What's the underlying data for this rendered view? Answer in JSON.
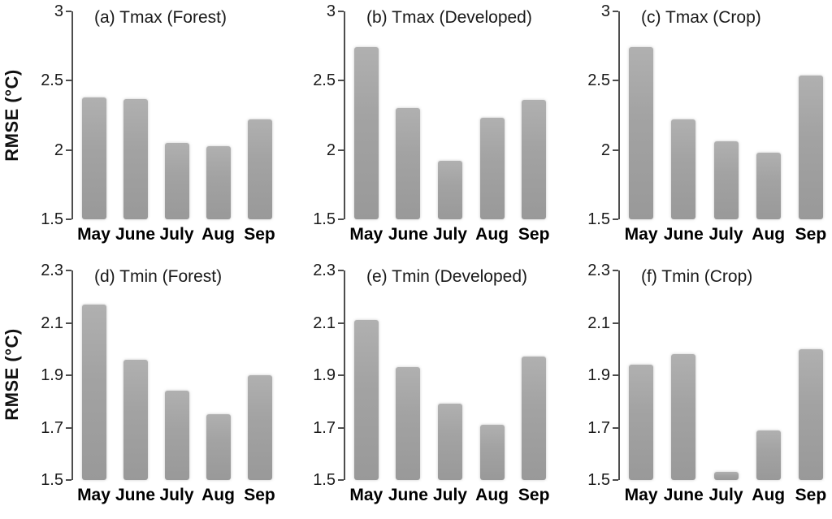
{
  "figure": {
    "ylabel": "RMSE (°C)"
  },
  "chart_data": [
    {
      "id": "a",
      "type": "bar",
      "title": "(a) Tmax (Forest)",
      "categories": [
        "May",
        "June",
        "July",
        "Aug",
        "Sep"
      ],
      "values": [
        2.38,
        2.37,
        2.05,
        2.03,
        2.22
      ],
      "ylabel": "RMSE (°C)",
      "show_ylabel": true,
      "ylim": [
        1.5,
        3.0
      ],
      "yticks": [
        3,
        2.5,
        2,
        1.5
      ],
      "ytick_labels": [
        "3",
        "2.5",
        "2",
        "1.5"
      ],
      "grid": false,
      "legend": "none"
    },
    {
      "id": "b",
      "type": "bar",
      "title": "(b) Tmax (Developed)",
      "categories": [
        "May",
        "June",
        "July",
        "Aug",
        "Sep"
      ],
      "values": [
        2.74,
        2.3,
        1.92,
        2.23,
        2.36
      ],
      "ylabel": "RMSE (°C)",
      "show_ylabel": false,
      "ylim": [
        1.5,
        3.0
      ],
      "yticks": [
        3,
        2.5,
        2,
        1.5
      ],
      "ytick_labels": [
        "3",
        "2.5",
        "2",
        "1.5"
      ],
      "grid": false,
      "legend": "none"
    },
    {
      "id": "c",
      "type": "bar",
      "title": "(c) Tmax (Crop)",
      "categories": [
        "May",
        "June",
        "July",
        "Aug",
        "Sep"
      ],
      "values": [
        2.74,
        2.22,
        2.06,
        1.98,
        2.54
      ],
      "ylabel": "RMSE (°C)",
      "show_ylabel": false,
      "ylim": [
        1.5,
        3.0
      ],
      "yticks": [
        3,
        2.5,
        2,
        1.5
      ],
      "ytick_labels": [
        "3",
        "2.5",
        "2",
        "1.5"
      ],
      "grid": false,
      "legend": "none"
    },
    {
      "id": "d",
      "type": "bar",
      "title": "(d) Tmin (Forest)",
      "categories": [
        "May",
        "June",
        "July",
        "Aug",
        "Sep"
      ],
      "values": [
        2.17,
        1.96,
        1.84,
        1.75,
        1.9
      ],
      "ylabel": "RMSE (°C)",
      "show_ylabel": true,
      "ylim": [
        1.5,
        2.3
      ],
      "yticks": [
        2.3,
        2.1,
        1.9,
        1.7,
        1.5
      ],
      "ytick_labels": [
        "2.3",
        "2.1",
        "1.9",
        "1.7",
        "1.5"
      ],
      "grid": false,
      "legend": "none"
    },
    {
      "id": "e",
      "type": "bar",
      "title": "(e) Tmin (Developed)",
      "categories": [
        "May",
        "June",
        "July",
        "Aug",
        "Sep"
      ],
      "values": [
        2.11,
        1.93,
        1.79,
        1.71,
        1.97
      ],
      "ylabel": "RMSE (°C)",
      "show_ylabel": false,
      "ylim": [
        1.5,
        2.3
      ],
      "yticks": [
        2.3,
        2.1,
        1.9,
        1.7,
        1.5
      ],
      "ytick_labels": [
        "2.3",
        "2.1",
        "1.9",
        "1.7",
        "1.5"
      ],
      "grid": false,
      "legend": "none"
    },
    {
      "id": "f",
      "type": "bar",
      "title": "(f) Tmin (Crop)",
      "categories": [
        "May",
        "June",
        "July",
        "Aug",
        "Sep"
      ],
      "values": [
        1.94,
        1.98,
        1.53,
        1.69,
        2.0
      ],
      "ylabel": "RMSE (°C)",
      "show_ylabel": false,
      "ylim": [
        1.5,
        2.3
      ],
      "yticks": [
        2.3,
        2.1,
        1.9,
        1.7,
        1.5
      ],
      "ytick_labels": [
        "2.3",
        "2.1",
        "1.9",
        "1.7",
        "1.5"
      ],
      "grid": false,
      "legend": "none"
    }
  ],
  "colors": {
    "bar_top": "#b0b0b0",
    "bar_bottom": "#999999",
    "axis": "#4d4d4d",
    "text": "#1a1a1a",
    "background": "#ffffff"
  }
}
